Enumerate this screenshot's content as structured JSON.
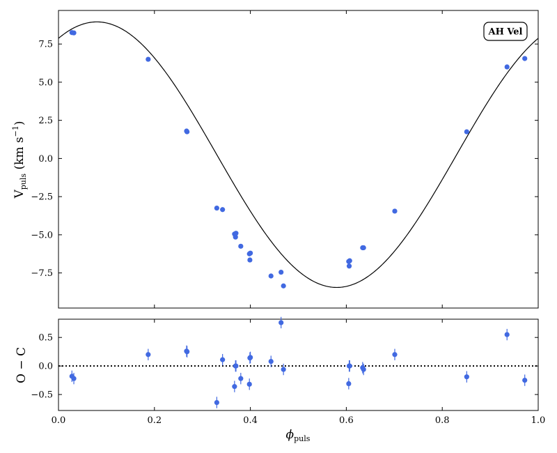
{
  "chart_data": [
    {
      "type": "scatter",
      "panel": "main",
      "badge": "AH Vel",
      "xlim": [
        0.0,
        1.0
      ],
      "ylim": [
        -9.8,
        9.7
      ],
      "yticks": [
        7.5,
        5.0,
        2.5,
        0.0,
        -2.5,
        -5.0,
        -7.5
      ],
      "ytick_labels": [
        "7.5",
        "5.0",
        "2.5",
        "0.0",
        "−2.5",
        "−5.0",
        "−7.5"
      ],
      "xticks": [
        0.0,
        0.2,
        0.4,
        0.6,
        0.8,
        1.0
      ],
      "ylabel_main": "V",
      "ylabel_sub": "puls",
      "ylabel_unit": " (km s",
      "ylabel_exp": "−1",
      "ylabel_close": ")",
      "grid": false,
      "point_color": "#4169e1",
      "fit": {
        "mean": 0.25,
        "amplitude": 8.7,
        "phase_of_max": 0.08,
        "color": "#000000"
      },
      "points": [
        [
          0.028,
          8.25
        ],
        [
          0.032,
          8.23
        ],
        [
          0.187,
          6.5
        ],
        [
          0.267,
          1.8
        ],
        [
          0.268,
          1.75
        ],
        [
          0.33,
          -3.25
        ],
        [
          0.342,
          -3.35
        ],
        [
          0.367,
          -4.95
        ],
        [
          0.369,
          -5.15
        ],
        [
          0.37,
          -4.9
        ],
        [
          0.38,
          -5.75
        ],
        [
          0.398,
          -6.25
        ],
        [
          0.399,
          -6.65
        ],
        [
          0.4,
          -6.2
        ],
        [
          0.443,
          -7.7
        ],
        [
          0.464,
          -7.45
        ],
        [
          0.469,
          -8.35
        ],
        [
          0.605,
          -6.75
        ],
        [
          0.606,
          -7.05
        ],
        [
          0.607,
          -6.7
        ],
        [
          0.634,
          -5.85
        ],
        [
          0.636,
          -5.85
        ],
        [
          0.701,
          -3.45
        ],
        [
          0.851,
          1.75
        ],
        [
          0.935,
          6.0
        ],
        [
          0.972,
          6.55
        ]
      ]
    },
    {
      "type": "scatter",
      "panel": "residuals",
      "xlim": [
        0.0,
        1.0
      ],
      "ylim": [
        -0.78,
        0.82
      ],
      "yticks": [
        0.5,
        0.0,
        -0.5
      ],
      "ytick_labels": [
        "0.5",
        "0.0",
        "−0.5"
      ],
      "xticks": [
        0.0,
        0.2,
        0.4,
        0.6,
        0.8,
        1.0
      ],
      "xtick_labels": [
        "0.0",
        "0.2",
        "0.4",
        "0.6",
        "0.8",
        "1.0"
      ],
      "ylabel": "O − C",
      "xlabel_main": "ϕ",
      "xlabel_sub": "puls",
      "zero_line": {
        "y": 0.0,
        "style": "dotted"
      },
      "grid": false,
      "error": 0.1,
      "point_color": "#4169e1",
      "points": [
        [
          0.028,
          -0.18
        ],
        [
          0.032,
          -0.22
        ],
        [
          0.187,
          0.2
        ],
        [
          0.267,
          0.26
        ],
        [
          0.268,
          0.25
        ],
        [
          0.33,
          -0.64
        ],
        [
          0.342,
          0.11
        ],
        [
          0.367,
          -0.36
        ],
        [
          0.369,
          0.0
        ],
        [
          0.37,
          0.0
        ],
        [
          0.38,
          -0.22
        ],
        [
          0.398,
          -0.32
        ],
        [
          0.399,
          0.14
        ],
        [
          0.4,
          0.15
        ],
        [
          0.443,
          0.08
        ],
        [
          0.464,
          0.76
        ],
        [
          0.469,
          -0.06
        ],
        [
          0.605,
          -0.31
        ],
        [
          0.606,
          0.0
        ],
        [
          0.607,
          0.0
        ],
        [
          0.634,
          -0.03
        ],
        [
          0.636,
          -0.06
        ],
        [
          0.701,
          0.2
        ],
        [
          0.851,
          -0.19
        ],
        [
          0.935,
          0.55
        ],
        [
          0.972,
          -0.25
        ]
      ]
    }
  ]
}
